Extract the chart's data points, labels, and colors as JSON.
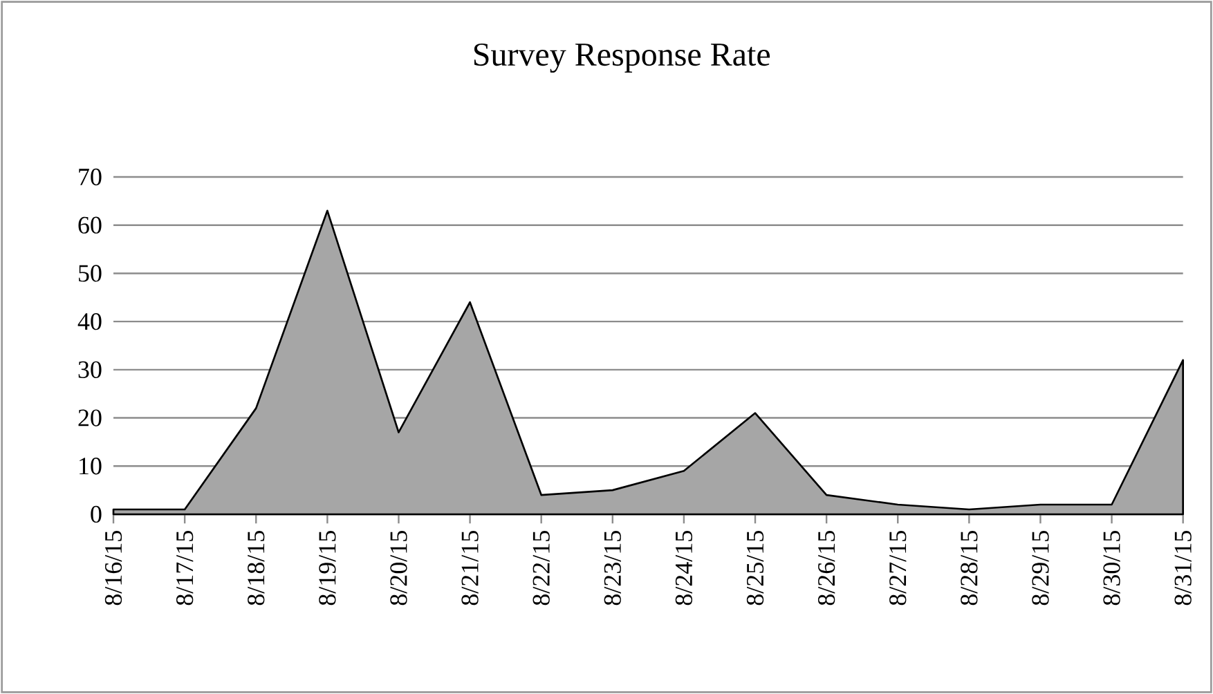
{
  "chart_data": {
    "type": "area",
    "title": "Survey Response Rate",
    "categories": [
      "8/16/15",
      "8/17/15",
      "8/18/15",
      "8/19/15",
      "8/20/15",
      "8/21/15",
      "8/22/15",
      "8/23/15",
      "8/24/15",
      "8/25/15",
      "8/26/15",
      "8/27/15",
      "8/28/15",
      "8/29/15",
      "8/30/15",
      "8/31/15"
    ],
    "values": [
      1,
      1,
      22,
      63,
      17,
      44,
      4,
      5,
      9,
      21,
      4,
      2,
      1,
      2,
      2,
      32
    ],
    "color": "#000000",
    "ylim": [
      0,
      70
    ],
    "yticks": [
      0,
      10,
      20,
      30,
      40,
      50,
      60,
      70
    ],
    "grid": "y"
  }
}
